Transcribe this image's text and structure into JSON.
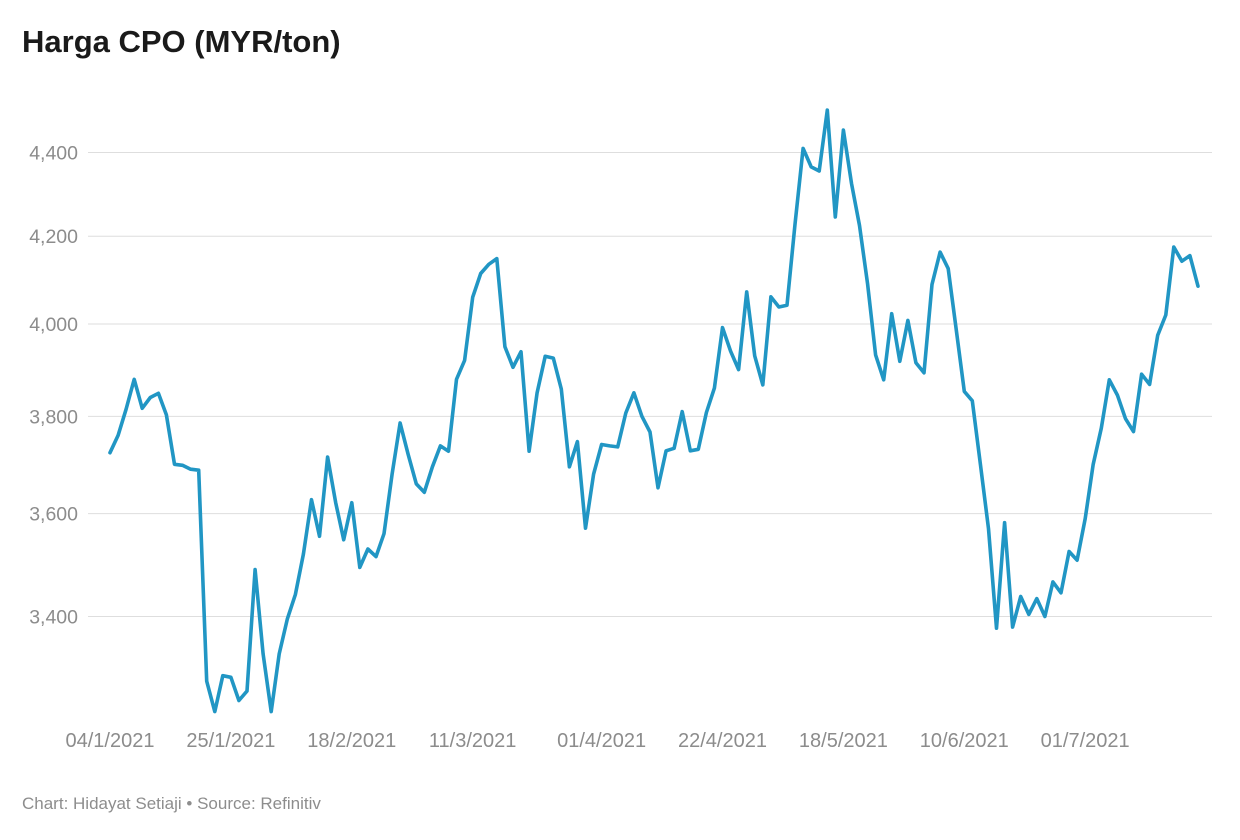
{
  "header": {
    "title": "Harga CPO (MYR/ton)"
  },
  "footer": {
    "text": "Chart: Hidayat Setiaji • Source: Refinitiv"
  },
  "colors": {
    "line": "#2196c4",
    "gridline": "#dedede",
    "axis_text": "#8c8c8c",
    "title_text": "#1a1a1a",
    "footer_text": "#8d8d8d",
    "background": "#ffffff"
  },
  "chart_data": {
    "type": "line",
    "title": "Harga CPO (MYR/ton)",
    "series_name": "Harga CPO",
    "unit": "MYR/ton",
    "y_scale": "log",
    "grid": true,
    "legend": false,
    "ylim": [
      3150,
      4520
    ],
    "y_ticks": [
      3400,
      3600,
      3800,
      4000,
      4200,
      4400
    ],
    "x_tick_labels": [
      {
        "index": 0,
        "label": "04/1/2021"
      },
      {
        "index": 15,
        "label": "25/1/2021"
      },
      {
        "index": 30,
        "label": "18/2/2021"
      },
      {
        "index": 45,
        "label": "11/3/2021"
      },
      {
        "index": 61,
        "label": "01/4/2021"
      },
      {
        "index": 76,
        "label": "22/4/2021"
      },
      {
        "index": 91,
        "label": "18/5/2021"
      },
      {
        "index": 106,
        "label": "10/6/2021"
      },
      {
        "index": 121,
        "label": "01/7/2021"
      }
    ],
    "values": [
      3724,
      3760,
      3815,
      3879,
      3817,
      3840,
      3849,
      3803,
      3700,
      3698,
      3690,
      3688,
      3280,
      3225,
      3290,
      3287,
      3245,
      3262,
      3490,
      3330,
      3225,
      3330,
      3395,
      3442,
      3520,
      3628,
      3555,
      3715,
      3622,
      3548,
      3622,
      3494,
      3530,
      3515,
      3560,
      3680,
      3786,
      3720,
      3660,
      3643,
      3695,
      3738,
      3727,
      3879,
      3920,
      4060,
      4114,
      4135,
      4148,
      3950,
      3905,
      3939,
      3727,
      3850,
      3929,
      3925,
      3858,
      3695,
      3747,
      3571,
      3680,
      3741,
      3738,
      3736,
      3807,
      3850,
      3800,
      3767,
      3652,
      3728,
      3733,
      3810,
      3728,
      3731,
      3808,
      3860,
      3992,
      3940,
      3900,
      4072,
      3930,
      3867,
      4061,
      4038,
      4042,
      4228,
      4410,
      4365,
      4355,
      4505,
      4245,
      4455,
      4325,
      4225,
      4090,
      3932,
      3878,
      4023,
      3918,
      4008,
      3915,
      3893,
      4089,
      4163,
      4125,
      3988,
      3853,
      3833,
      3700,
      3570,
      3378,
      3582,
      3380,
      3438,
      3404,
      3434,
      3400,
      3466,
      3445,
      3525,
      3508,
      3590,
      3700,
      3775,
      3878,
      3845,
      3795,
      3768,
      3890,
      3868,
      3975,
      4020,
      4175,
      4142,
      4155,
      4085
    ]
  }
}
